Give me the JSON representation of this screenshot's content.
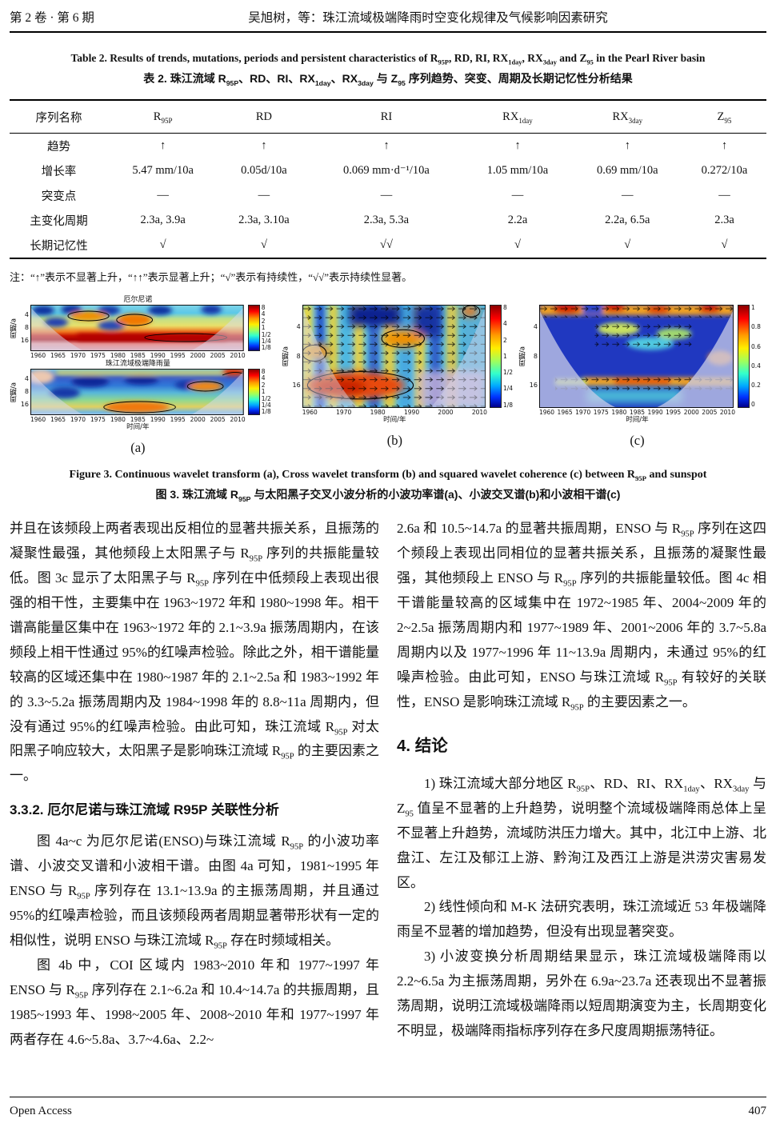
{
  "header": {
    "issue": "第 2 卷 · 第 6 期",
    "running_title": "吴旭树，等：珠江流域极端降雨时空变化规律及气候影响因素研究"
  },
  "table": {
    "caption_en": "Table 2. Results of trends, mutations, periods and persistent characteristics of R_{95P}, RD, RI, RX_{1day}, RX_{3day} and Z_{95} in the Pearl River basin",
    "caption_zh": "表 2. 珠江流域 R_{95P}、RD、RI、RX_{1day}、RX_{3day} 与 Z_{95} 序列趋势、突变、周期及长期记忆性分析结果",
    "columns": [
      "序列名称",
      "R_{95P}",
      "RD",
      "RI",
      "RX_{1day}",
      "RX_{3day}",
      "Z_{95}"
    ],
    "rows": [
      [
        "趋势",
        "↑",
        "↑",
        "↑",
        "↑",
        "↑",
        "↑"
      ],
      [
        "增长率",
        "5.47 mm/10a",
        "0.05d/10a",
        "0.069 mm·d⁻¹/10a",
        "1.05 mm/10a",
        "0.69 mm/10a",
        "0.272/10a"
      ],
      [
        "突变点",
        "—",
        "—",
        "—",
        "—",
        "—",
        "—"
      ],
      [
        "主变化周期",
        "2.3a, 3.9a",
        "2.3a, 3.10a",
        "2.3a, 5.3a",
        "2.2a",
        "2.2a, 6.5a",
        "2.3a"
      ],
      [
        "长期记忆性",
        "√",
        "√",
        "√√",
        "√",
        "√",
        "√"
      ]
    ],
    "note": "注：“↑”表示不显著上升，“↑↑”表示显著上升；“√”表示有持续性，“√√”表示持续性显著。"
  },
  "figure": {
    "caption_en": "Figure 3. Continuous wavelet transform (a), Cross wavelet transform (b) and squared wavelet coherence (c) between R_{95P} and sunspot",
    "caption_zh": "图 3. 珠江流域 R_{95P} 与太阳黑子交叉小波分析的小波功率谱(a)、小波交叉谱(b)和小波相干谱(c)",
    "ylabel": "周期/a",
    "xlabel": "时间/年",
    "yticks": [
      "4",
      "8",
      "16"
    ],
    "xticks_5yr": [
      "1960",
      "1965",
      "1970",
      "1975",
      "1980",
      "1985",
      "1990",
      "1995",
      "2000",
      "2005",
      "2010"
    ],
    "xticks_10yr": [
      "1960",
      "1970",
      "1980",
      "1990",
      "2000",
      "2010"
    ],
    "colorbar_power": [
      "8",
      "4",
      "2",
      "1",
      "1/2",
      "1/4",
      "1/8"
    ],
    "colorbar_coherence": [
      "1",
      "0.8",
      "0.6",
      "0.4",
      "0.2",
      "0"
    ],
    "panel_a": {
      "label": "(a)",
      "title_top": "厄尔尼诺",
      "title_bottom": "珠江流域极端降雨量"
    },
    "panel_b": {
      "label": "(b)"
    },
    "panel_c": {
      "label": "(c)"
    }
  },
  "chart_data": [
    {
      "type": "heatmap",
      "name": "continuous-wavelet-power-spectrum",
      "panel": "(a)",
      "subplots": [
        "厄尔尼诺",
        "珠江流域极端降雨量"
      ],
      "xlabel": "时间/年",
      "ylabel": "周期/a",
      "x_ticks": [
        1960,
        1965,
        1970,
        1975,
        1980,
        1985,
        1990,
        1995,
        2000,
        2005,
        2010
      ],
      "y_ticks": [
        4,
        8,
        16
      ],
      "colorbar_ticks": [
        "8",
        "4",
        "2",
        "1",
        "1/2",
        "1/4",
        "1/8"
      ],
      "legend_position": "right",
      "grid": false
    },
    {
      "type": "heatmap",
      "name": "cross-wavelet-spectrum",
      "panel": "(b)",
      "xlabel": "时间/年",
      "ylabel": "周期/a",
      "x_ticks": [
        1960,
        1970,
        1980,
        1990,
        2000,
        2010
      ],
      "y_ticks": [
        4,
        8,
        16
      ],
      "colorbar_ticks": [
        "8",
        "4",
        "2",
        "1",
        "1/2",
        "1/4",
        "1/8"
      ],
      "legend_position": "right",
      "grid": false
    },
    {
      "type": "heatmap",
      "name": "squared-wavelet-coherence",
      "panel": "(c)",
      "xlabel": "时间/年",
      "ylabel": "周期/a",
      "x_ticks": [
        1960,
        1965,
        1970,
        1975,
        1980,
        1985,
        1990,
        1995,
        2000,
        2005,
        2010
      ],
      "y_ticks": [
        4,
        8,
        16
      ],
      "colorbar_ticks": [
        "1",
        "0.8",
        "0.6",
        "0.4",
        "0.2",
        "0"
      ],
      "legend_position": "right",
      "grid": false
    }
  ],
  "body": {
    "left": {
      "p1": "并且在该频段上两者表现出反相位的显著共振关系，且振荡的凝聚性最强，其他频段上太阳黑子与 R_{95P} 序列的共振能量较低。图 3c 显示了太阳黑子与 R_{95P} 序列在中低频段上表现出很强的相干性，主要集中在 1963~1972 年和 1980~1998 年。相干谱高能量区集中在 1963~1972 年的 2.1~3.9a 振荡周期内，在该频段上相干性通过 95%的红噪声检验。除此之外，相干谱能量较高的区域还集中在 1980~1987 年的 2.1~2.5a 和 1983~1992 年的 3.3~5.2a 振荡周期内及 1984~1998 年的 8.8~11a 周期内，但没有通过 95%的红噪声检验。由此可知，珠江流域 R_{95P} 对太阳黑子响应较大，太阳黑子是影响珠江流域 R_{95P} 的主要因素之一。",
      "h1": "3.3.2. 厄尔尼诺与珠江流域 R95P 关联性分析",
      "p2": "图 4a~c 为厄尔尼诺(ENSO)与珠江流域 R_{95P} 的小波功率谱、小波交叉谱和小波相干谱。由图 4a 可知，1981~1995 年 ENSO 与 R_{95P} 序列存在 13.1~13.9a 的主振荡周期，并且通过 95%的红噪声检验，而且该频段两者周期显著带形状有一定的相似性，说明 ENSO 与珠江流域 R_{95P} 存在时频域相关。",
      "p3": "图 4b 中，COI 区域内 1983~2010 年和 1977~1997 年 ENSO 与 R_{95P} 序列存在 2.1~6.2a 和 10.4~14.7a 的共振周期，且 1985~1993 年、1998~2005 年、2008~2010 年和 1977~1997 年两者存在 4.6~5.8a、3.7~4.6a、2.2~"
    },
    "right": {
      "p1": "2.6a 和 10.5~14.7a 的显著共振周期，ENSO 与 R_{95P} 序列在这四个频段上表现出同相位的显著共振关系，且振荡的凝聚性最强，其他频段上 ENSO 与 R_{95P} 序列的共振能量较低。图 4c 相干谱能量较高的区域集中在 1972~1985 年、2004~2009 年的 2~2.5a 振荡周期内和 1977~1989 年、2001~2006 年的 3.7~5.8a 周期内以及 1977~1996 年 11~13.9a 周期内，未通过 95%的红噪声检验。由此可知，ENSO 与珠江流域 R_{95P} 有较好的关联性，ENSO 是影响珠江流域 R_{95P} 的主要因素之一。",
      "h1": "4. 结论",
      "p2": "1) 珠江流域大部分地区 R_{95P}、RD、RI、RX_{1day}、RX_{3day} 与 Z_{95} 值呈不显著的上升趋势，说明整个流域极端降雨总体上呈不显著上升趋势，流域防洪压力增大。其中，北江中上游、北盘江、左江及郁江上游、黔洵江及西江上游是洪涝灾害易发区。",
      "p3": "2) 线性倾向和 M-K 法研究表明，珠江流域近 53 年极端降雨呈不显著的增加趋势，但没有出现显著突变。",
      "p4": "3) 小波变换分析周期结果显示，珠江流域极端降雨以 2.2~6.5a 为主振荡周期，另外在 6.9a~23.7a 还表现出不显著振荡周期，说明江流域极端降雨以短周期演变为主，长周期变化不明显，极端降雨指标序列存在多尺度周期振荡特征。"
    }
  },
  "footer": {
    "left": "Open Access",
    "page": "407"
  }
}
